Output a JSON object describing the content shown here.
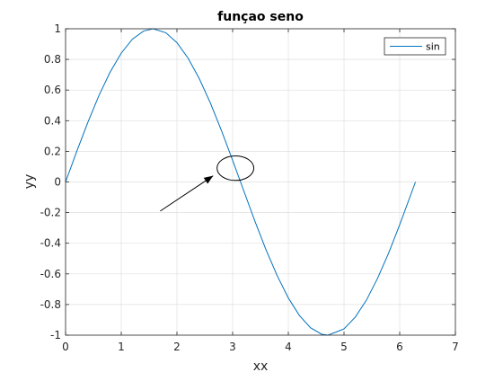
{
  "chart_data": {
    "type": "line",
    "title": "funçao seno",
    "xlabel": "xx",
    "ylabel": "yy",
    "xlim": [
      0,
      7
    ],
    "ylim": [
      -1,
      1
    ],
    "xticks": [
      0,
      1,
      2,
      3,
      4,
      5,
      6,
      7
    ],
    "xtick_labels": [
      "0",
      "1",
      "2",
      "3",
      "4",
      "5",
      "6",
      "7"
    ],
    "yticks": [
      1,
      0.8,
      0.6,
      0.4,
      0.2,
      0,
      -0.2,
      -0.4,
      -0.6,
      -0.8,
      -1
    ],
    "ytick_labels": [
      "1",
      "0.8",
      "0.6",
      "0.4",
      "0.2",
      "0",
      "-0.2",
      "-0.4",
      "-0.6",
      "-0.8",
      "-1"
    ],
    "grid": true,
    "legend_position": "top-right",
    "series": [
      {
        "name": "sin",
        "color": "#0072bd",
        "x": [
          0,
          0.2,
          0.4,
          0.6,
          0.8,
          1.0,
          1.2,
          1.4,
          1.571,
          1.8,
          2.0,
          2.2,
          2.4,
          2.6,
          2.8,
          3.0,
          3.142,
          3.4,
          3.6,
          3.8,
          4.0,
          4.2,
          4.4,
          4.6,
          4.712,
          5.0,
          5.2,
          5.4,
          5.6,
          5.8,
          6.0,
          6.283
        ],
        "y": [
          0,
          0.199,
          0.389,
          0.565,
          0.717,
          0.841,
          0.932,
          0.985,
          1.0,
          0.974,
          0.909,
          0.808,
          0.675,
          0.516,
          0.335,
          0.141,
          0,
          -0.256,
          -0.443,
          -0.612,
          -0.757,
          -0.872,
          -0.952,
          -0.994,
          -1.0,
          -0.959,
          -0.883,
          -0.773,
          -0.631,
          -0.465,
          -0.279,
          0
        ]
      }
    ],
    "annotations": [
      {
        "type": "arrow",
        "from": [
          1.7,
          -0.19
        ],
        "to": [
          2.65,
          0.04
        ],
        "color": "#000000"
      },
      {
        "type": "ellipse",
        "center": [
          3.05,
          0.09
        ],
        "radii": [
          0.33,
          0.08
        ],
        "color": "#000000"
      }
    ]
  }
}
